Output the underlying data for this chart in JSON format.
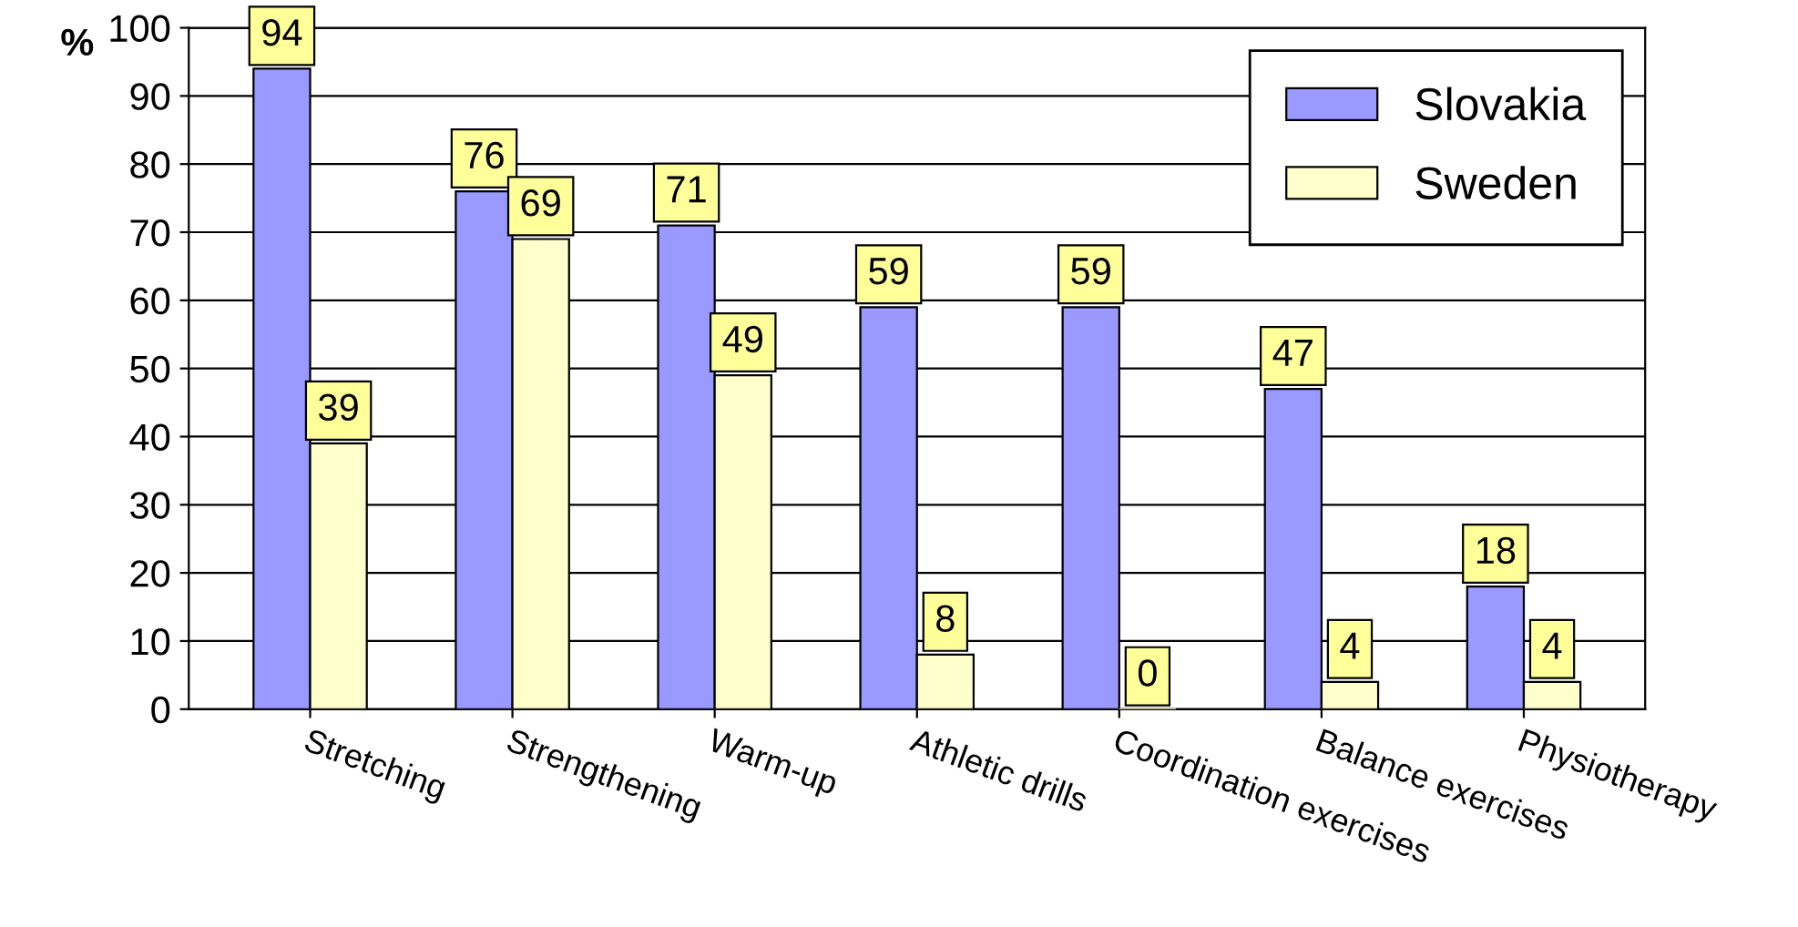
{
  "chart_data": {
    "type": "bar",
    "ylabel": "%",
    "categories": [
      "Stretching",
      "Strengthening",
      "Warm-up",
      "Athletic drills",
      "Coordination exercises",
      "Balance exercises",
      "Physiotherapy"
    ],
    "series": [
      {
        "name": "Slovakia",
        "color": "#9999ff",
        "values": [
          94,
          76,
          71,
          59,
          59,
          47,
          18
        ]
      },
      {
        "name": "Sweden",
        "color": "#ffffcc",
        "values": [
          39,
          69,
          49,
          8,
          0,
          4,
          4
        ]
      }
    ],
    "ylim": [
      0,
      100
    ],
    "yticks": [
      0,
      10,
      20,
      30,
      40,
      50,
      60,
      70,
      80,
      90,
      100
    ],
    "grid": "y",
    "legend": "top right",
    "data_labels": true
  }
}
